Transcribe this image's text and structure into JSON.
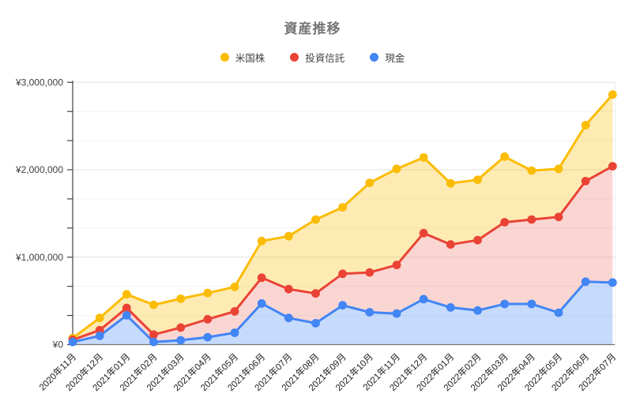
{
  "chart_data": {
    "type": "area",
    "title": "資産推移",
    "title_color": "#757575",
    "legend_position": "top",
    "grid": {
      "show": true,
      "major_color": "#E2E2E2",
      "minor_color": "#F2F2F2"
    },
    "x_categories": [
      "2020年11月",
      "2020年12月",
      "2021年01月",
      "2021年02月",
      "2021年03月",
      "2021年04月",
      "2021年05月",
      "2021年06月",
      "2021年07月",
      "2021年08月",
      "2021年09月",
      "2021年10月",
      "2021年11月",
      "2021年12月",
      "2022年01月",
      "2022年02月",
      "2022年03月",
      "2022年04月",
      "2022年05月",
      "2022年06月",
      "2022年07月"
    ],
    "values_are": "line positions in yen as drawn (bands: 現金 bottom, 投資信託 middle, 米国株 top)",
    "series": [
      {
        "name": "米国株",
        "color": "#FBBC04",
        "values": [
          75000,
          305000,
          575000,
          455000,
          525000,
          590000,
          660000,
          1185000,
          1240000,
          1430000,
          1570000,
          1850000,
          2010000,
          2140000,
          1845000,
          1885000,
          2150000,
          1990000,
          2010000,
          2510000,
          2860000
        ]
      },
      {
        "name": "投資信託",
        "color": "#EA4335",
        "values": [
          55000,
          165000,
          420000,
          115000,
          195000,
          290000,
          380000,
          765000,
          635000,
          585000,
          810000,
          825000,
          910000,
          1275000,
          1145000,
          1195000,
          1400000,
          1430000,
          1460000,
          1870000,
          2040000
        ]
      },
      {
        "name": "現金",
        "color": "#4285F4",
        "values": [
          30000,
          100000,
          335000,
          30000,
          50000,
          85000,
          135000,
          470000,
          305000,
          245000,
          450000,
          370000,
          355000,
          520000,
          425000,
          390000,
          465000,
          465000,
          365000,
          720000,
          710000
        ]
      }
    ],
    "y_axis": {
      "currency": "JPY",
      "min": 0,
      "max": 3000000,
      "major_step": 1000000,
      "minor_divisions_per_major": 3,
      "tick_labels": [
        "¥0",
        "¥1,000,000",
        "¥2,000,000",
        "¥3,000,000"
      ]
    }
  }
}
